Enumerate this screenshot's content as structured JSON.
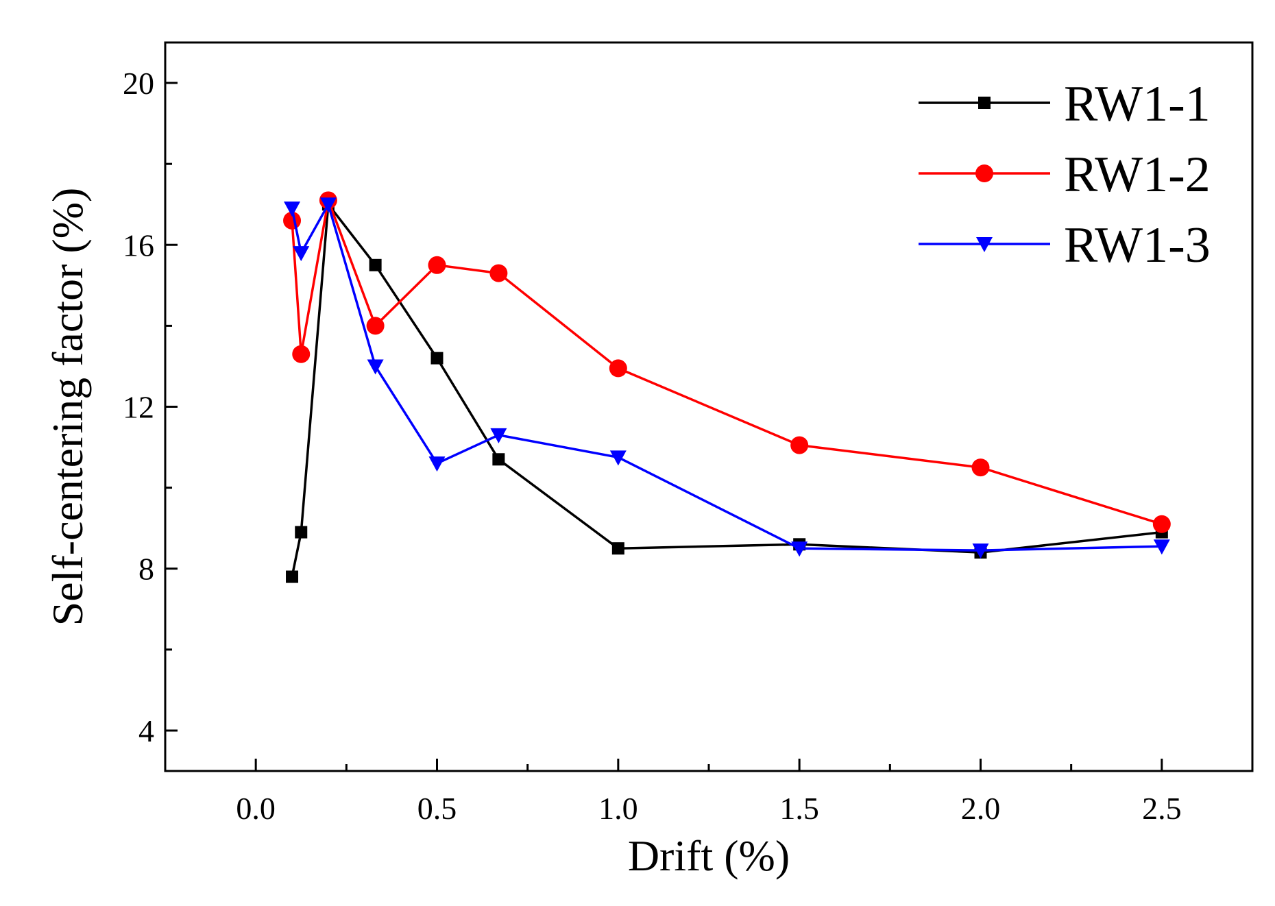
{
  "chart_data": {
    "type": "line",
    "title": "",
    "xlabel": "Drift (%)",
    "ylabel": "Self-centering factor (%)",
    "xlim": [
      -0.25,
      2.75
    ],
    "ylim": [
      3,
      21
    ],
    "xticks": [
      0.0,
      0.5,
      1.0,
      1.5,
      2.0,
      2.5
    ],
    "xtick_labels": [
      "0.0",
      "0.5",
      "1.0",
      "1.5",
      "2.0",
      "2.5"
    ],
    "yticks": [
      4,
      8,
      12,
      16,
      20
    ],
    "ytick_labels": [
      "4",
      "8",
      "12",
      "16",
      "20"
    ],
    "grid": false,
    "legend_position": "top-right",
    "series": [
      {
        "name": "RW1-1",
        "color": "#000000",
        "marker": "square",
        "x": [
          0.1,
          0.125,
          0.2,
          0.33,
          0.5,
          0.67,
          1.0,
          1.5,
          2.0,
          2.5
        ],
        "y": [
          7.8,
          8.9,
          17.0,
          15.5,
          13.2,
          10.7,
          8.5,
          8.6,
          8.4,
          8.9
        ]
      },
      {
        "name": "RW1-2",
        "color": "#ff0000",
        "marker": "circle",
        "x": [
          0.1,
          0.125,
          0.2,
          0.33,
          0.5,
          0.67,
          1.0,
          1.5,
          2.0,
          2.5
        ],
        "y": [
          16.6,
          13.3,
          17.1,
          14.0,
          15.5,
          15.3,
          12.95,
          11.05,
          10.5,
          9.1
        ]
      },
      {
        "name": "RW1-3",
        "color": "#0000ff",
        "marker": "triangle-down",
        "x": [
          0.1,
          0.125,
          0.2,
          0.33,
          0.5,
          0.67,
          1.0,
          1.5,
          2.0,
          2.5
        ],
        "y": [
          16.9,
          15.8,
          17.0,
          13.0,
          10.6,
          11.3,
          10.75,
          8.5,
          8.45,
          8.55
        ]
      }
    ]
  }
}
